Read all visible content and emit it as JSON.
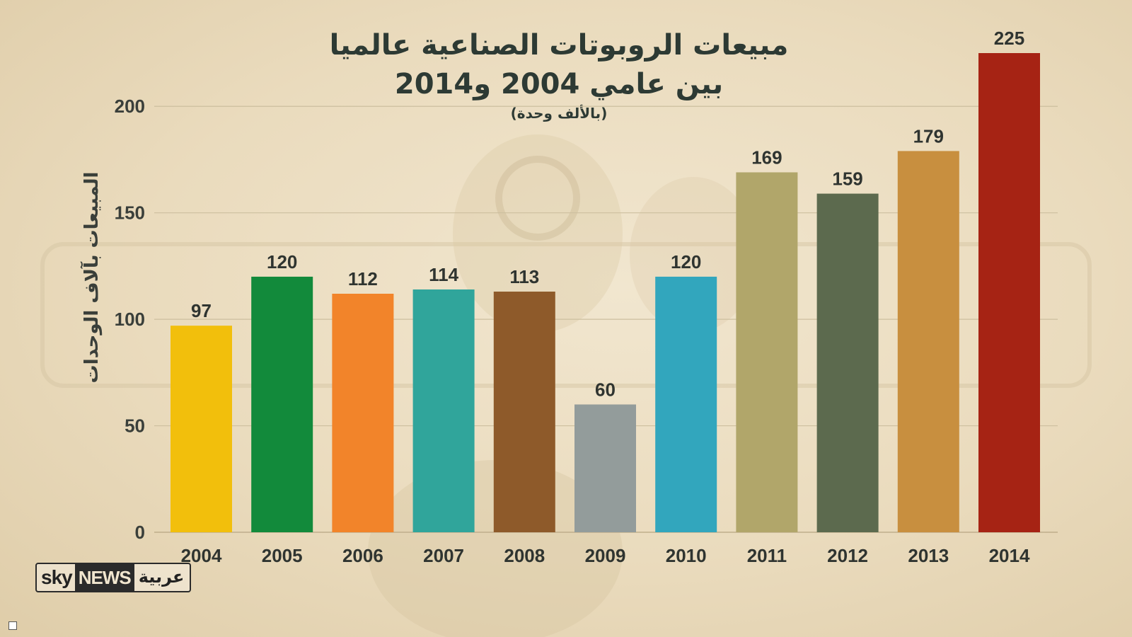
{
  "title": {
    "line1": "مبيعات الروبوتات الصناعية عالميا",
    "line2": "بين عامي 2004 و2014",
    "sub": "(بالألف وحدة)"
  },
  "logo": {
    "sky": "sky",
    "news": "NEWS",
    "arabic": "عربية"
  },
  "chart_data": {
    "type": "bar",
    "title": "مبيعات الروبوتات الصناعية عالميا بين عامي 2004 و2014",
    "subtitle": "(بالألف وحدة)",
    "xlabel": "",
    "ylabel": "المبيعات بآلاف الوحدات",
    "categories": [
      "2004",
      "2005",
      "2006",
      "2007",
      "2008",
      "2009",
      "2010",
      "2011",
      "2012",
      "2013",
      "2014"
    ],
    "values": [
      97,
      120,
      112,
      114,
      113,
      60,
      120,
      169,
      159,
      179,
      225
    ],
    "colors": [
      "#f2bf0c",
      "#128a3b",
      "#f2842a",
      "#30a59b",
      "#8e5a2a",
      "#939c9b",
      "#32a6bd",
      "#b1a66a",
      "#5c6a4e",
      "#c88f3f",
      "#a62314"
    ],
    "ylim": [
      0,
      225
    ],
    "yticks": [
      0,
      50,
      100,
      150,
      200
    ],
    "grid": true,
    "legend": "none"
  }
}
